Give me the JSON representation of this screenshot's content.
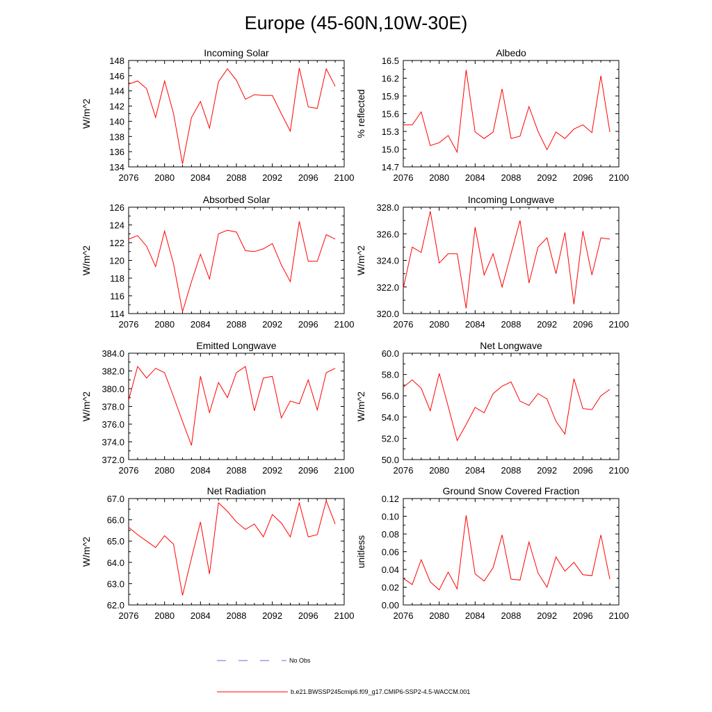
{
  "title": "Europe (45-60N,10W-30E)",
  "legend": [
    {
      "label": "No Obs",
      "color": "#6a6ad8",
      "dash": true
    },
    {
      "label": "b.e21.BWSSP245cmip6.f09_g17.CMIP6-SSP2-4.5-WACCM.001",
      "color": "#ff0000",
      "dash": false
    }
  ],
  "chart_data": [
    {
      "type": "line",
      "title": "Incoming Solar",
      "ylabel": "W/m^2",
      "xlim": [
        2076,
        2100
      ],
      "xticks": [
        2076,
        2080,
        2084,
        2088,
        2092,
        2096,
        2100
      ],
      "ylim": [
        134,
        148
      ],
      "yticks": [
        "134",
        "136",
        "138",
        "140",
        "142",
        "144",
        "146",
        "148"
      ],
      "series": [
        {
          "color": "#ff0000",
          "x": [
            2076,
            2077,
            2078,
            2079,
            2080,
            2081,
            2082,
            2083,
            2084,
            2085,
            2086,
            2087,
            2088,
            2089,
            2090,
            2091,
            2092,
            2093,
            2094,
            2095,
            2096,
            2097,
            2098,
            2099
          ],
          "y": [
            144.9,
            145.3,
            144.3,
            140.5,
            145.3,
            141.0,
            134.4,
            140.5,
            142.6,
            139.1,
            145.2,
            146.9,
            145.4,
            142.9,
            143.5,
            143.4,
            143.4,
            141.0,
            138.7,
            147.0,
            141.9,
            141.7,
            146.9,
            144.6
          ]
        }
      ]
    },
    {
      "type": "line",
      "title": "Albedo",
      "ylabel": "% reflected",
      "xlim": [
        2076,
        2100
      ],
      "xticks": [
        2076,
        2080,
        2084,
        2088,
        2092,
        2096,
        2100
      ],
      "ylim": [
        14.7,
        16.5
      ],
      "yticks": [
        "14.7",
        "15.0",
        "15.3",
        "15.6",
        "15.9",
        "16.2",
        "16.5"
      ],
      "series": [
        {
          "color": "#ff0000",
          "x": [
            2076,
            2077,
            2078,
            2079,
            2080,
            2081,
            2082,
            2083,
            2084,
            2085,
            2086,
            2087,
            2088,
            2089,
            2090,
            2091,
            2092,
            2093,
            2094,
            2095,
            2096,
            2097,
            2098,
            2099
          ],
          "y": [
            15.41,
            15.41,
            15.63,
            15.06,
            15.11,
            15.23,
            14.95,
            16.34,
            15.29,
            15.18,
            15.29,
            16.02,
            15.18,
            15.22,
            15.72,
            15.3,
            14.99,
            15.29,
            15.18,
            15.34,
            15.41,
            15.28,
            16.24,
            15.29
          ]
        }
      ]
    },
    {
      "type": "line",
      "title": "Absorbed Solar",
      "ylabel": "W/m^2",
      "xlim": [
        2076,
        2100
      ],
      "xticks": [
        2076,
        2080,
        2084,
        2088,
        2092,
        2096,
        2100
      ],
      "ylim": [
        114,
        126
      ],
      "yticks": [
        "114",
        "116",
        "118",
        "120",
        "122",
        "124",
        "126"
      ],
      "series": [
        {
          "color": "#ff0000",
          "x": [
            2076,
            2077,
            2078,
            2079,
            2080,
            2081,
            2082,
            2083,
            2084,
            2085,
            2086,
            2087,
            2088,
            2089,
            2090,
            2091,
            2092,
            2093,
            2094,
            2095,
            2096,
            2097,
            2098,
            2099
          ],
          "y": [
            122.4,
            122.8,
            121.6,
            119.3,
            123.3,
            119.6,
            114.2,
            117.6,
            120.7,
            117.9,
            123.0,
            123.4,
            123.2,
            121.1,
            121.0,
            121.3,
            121.9,
            119.5,
            117.6,
            124.4,
            119.9,
            119.9,
            122.9,
            122.4
          ]
        }
      ]
    },
    {
      "type": "line",
      "title": "Incoming Longwave",
      "ylabel": "W/m^2",
      "xlim": [
        2076,
        2100
      ],
      "xticks": [
        2076,
        2080,
        2084,
        2088,
        2092,
        2096,
        2100
      ],
      "ylim": [
        320.0,
        328.0
      ],
      "yticks": [
        "320.0",
        "322.0",
        "324.0",
        "326.0",
        "328.0"
      ],
      "series": [
        {
          "color": "#ff0000",
          "x": [
            2076,
            2077,
            2078,
            2079,
            2080,
            2081,
            2082,
            2083,
            2084,
            2085,
            2086,
            2087,
            2088,
            2089,
            2090,
            2091,
            2092,
            2093,
            2094,
            2095,
            2096,
            2097,
            2098,
            2099
          ],
          "y": [
            321.9,
            325.0,
            324.6,
            327.7,
            323.8,
            324.5,
            324.5,
            320.4,
            326.5,
            322.9,
            324.5,
            322.0,
            324.5,
            327.0,
            322.3,
            325.0,
            325.7,
            323.0,
            326.1,
            320.7,
            326.2,
            322.9,
            325.7,
            325.6
          ]
        }
      ]
    },
    {
      "type": "line",
      "title": "Emitted Longwave",
      "ylabel": "W/m^2",
      "xlim": [
        2076,
        2100
      ],
      "xticks": [
        2076,
        2080,
        2084,
        2088,
        2092,
        2096,
        2100
      ],
      "ylim": [
        372.0,
        384.0
      ],
      "yticks": [
        "372.0",
        "374.0",
        "376.0",
        "378.0",
        "380.0",
        "382.0",
        "384.0"
      ],
      "series": [
        {
          "color": "#ff0000",
          "x": [
            2076,
            2077,
            2078,
            2079,
            2080,
            2081,
            2082,
            2083,
            2084,
            2085,
            2086,
            2087,
            2088,
            2089,
            2090,
            2091,
            2092,
            2093,
            2094,
            2095,
            2096,
            2097,
            2098,
            2099
          ],
          "y": [
            378.7,
            382.5,
            381.2,
            382.3,
            381.8,
            379.1,
            376.3,
            373.6,
            381.4,
            377.3,
            380.7,
            379.0,
            381.8,
            382.5,
            377.5,
            381.2,
            381.4,
            376.7,
            378.6,
            378.3,
            381.0,
            377.6,
            381.8,
            382.3
          ]
        }
      ]
    },
    {
      "type": "line",
      "title": "Net Longwave",
      "ylabel": "W/m^2",
      "xlim": [
        2076,
        2100
      ],
      "xticks": [
        2076,
        2080,
        2084,
        2088,
        2092,
        2096,
        2100
      ],
      "ylim": [
        50.0,
        60.0
      ],
      "yticks": [
        "50.0",
        "52.0",
        "54.0",
        "56.0",
        "58.0",
        "60.0"
      ],
      "series": [
        {
          "color": "#ff0000",
          "x": [
            2076,
            2077,
            2078,
            2079,
            2080,
            2081,
            2082,
            2083,
            2084,
            2085,
            2086,
            2087,
            2088,
            2089,
            2090,
            2091,
            2092,
            2093,
            2094,
            2095,
            2096,
            2097,
            2098,
            2099
          ],
          "y": [
            56.8,
            57.5,
            56.7,
            54.6,
            58.1,
            55.0,
            51.8,
            53.3,
            54.9,
            54.4,
            56.2,
            56.9,
            57.3,
            55.5,
            55.1,
            56.2,
            55.7,
            53.6,
            52.4,
            57.6,
            54.8,
            54.7,
            56.0,
            56.6
          ]
        }
      ]
    },
    {
      "type": "line",
      "title": "Net Radiation",
      "ylabel": "W/m^2",
      "xlim": [
        2076,
        2100
      ],
      "xticks": [
        2076,
        2080,
        2084,
        2088,
        2092,
        2096,
        2100
      ],
      "ylim": [
        62.0,
        67.0
      ],
      "yticks": [
        "62.0",
        "63.0",
        "64.0",
        "65.0",
        "66.0",
        "67.0"
      ],
      "series": [
        {
          "color": "#ff0000",
          "x": [
            2076,
            2077,
            2078,
            2079,
            2080,
            2081,
            2082,
            2083,
            2084,
            2085,
            2086,
            2087,
            2088,
            2089,
            2090,
            2091,
            2092,
            2093,
            2094,
            2095,
            2096,
            2097,
            2098,
            2099
          ],
          "y": [
            65.65,
            65.3,
            65.0,
            64.7,
            65.25,
            64.85,
            62.45,
            64.2,
            65.9,
            63.45,
            66.8,
            66.4,
            65.9,
            65.55,
            65.8,
            65.2,
            66.25,
            65.85,
            65.2,
            66.8,
            65.2,
            65.3,
            66.9,
            65.8
          ]
        }
      ]
    },
    {
      "type": "line",
      "title": "Ground Snow Covered Fraction",
      "ylabel": "unitless",
      "xlim": [
        2076,
        2100
      ],
      "xticks": [
        2076,
        2080,
        2084,
        2088,
        2092,
        2096,
        2100
      ],
      "ylim": [
        0.0,
        0.12
      ],
      "yticks": [
        "0.00",
        "0.02",
        "0.04",
        "0.06",
        "0.08",
        "0.10",
        "0.12"
      ],
      "series": [
        {
          "color": "#ff0000",
          "x": [
            2076,
            2077,
            2078,
            2079,
            2080,
            2081,
            2082,
            2083,
            2084,
            2085,
            2086,
            2087,
            2088,
            2089,
            2090,
            2091,
            2092,
            2093,
            2094,
            2095,
            2096,
            2097,
            2098,
            2099
          ],
          "y": [
            0.03,
            0.023,
            0.051,
            0.026,
            0.017,
            0.037,
            0.018,
            0.101,
            0.035,
            0.027,
            0.042,
            0.079,
            0.029,
            0.028,
            0.071,
            0.036,
            0.02,
            0.054,
            0.038,
            0.048,
            0.034,
            0.033,
            0.079,
            0.029
          ]
        }
      ]
    }
  ]
}
